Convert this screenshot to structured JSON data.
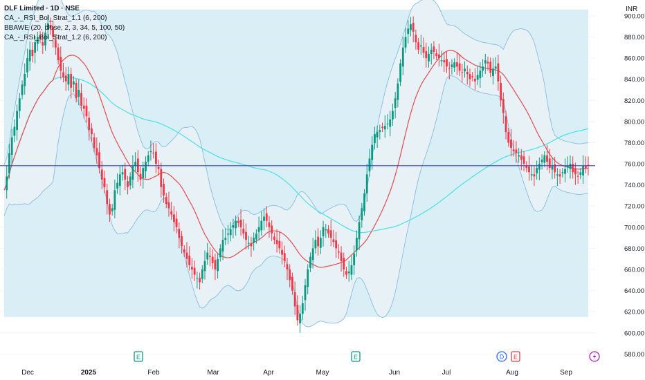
{
  "header": {
    "title": "DLF Limited · 1D · NSE",
    "indicators": [
      "CA_-_RSI_Bol_Strat_1.1 (6, 200)",
      "BBAWE (20, close, 2, 3, 34, 5, 100, 50)",
      "CA_-_RSI_Bol_Strat_1.2 (6, 200)"
    ],
    "currency": "INR"
  },
  "colors": {
    "up": "#089981",
    "down": "#f23645",
    "band_fill": "#d3ebf5",
    "band_line": "#8fc1e3",
    "ma_red": "#e0585b",
    "ma_cyan": "#4fe3e6",
    "hline": "#2f3fcf",
    "kc_blue": "#7fc3ee"
  },
  "chart_data": {
    "type": "candlestick",
    "x_labels": [
      "Dec",
      "2025",
      "Feb",
      "Mar",
      "Apr",
      "May",
      "Jun",
      "Jul",
      "Aug",
      "Sep"
    ],
    "y_ticks": [
      580,
      600,
      620,
      640,
      660,
      680,
      700,
      720,
      740,
      760,
      780,
      800,
      820,
      840,
      860,
      880,
      900
    ],
    "y_range": [
      575,
      915
    ],
    "horizontal_line": 758.2,
    "closes": [
      735,
      748,
      770,
      785,
      795,
      810,
      822,
      835,
      845,
      860,
      868,
      862,
      875,
      880,
      878,
      872,
      884,
      893,
      888,
      880,
      870,
      858,
      848,
      842,
      838,
      845,
      832,
      838,
      822,
      830,
      815,
      812,
      805,
      792,
      788,
      775,
      768,
      756,
      745,
      738,
      722,
      712,
      718,
      735,
      742,
      750,
      752,
      745,
      738,
      748,
      758,
      762,
      752,
      745,
      756,
      762,
      768,
      772,
      770,
      760,
      755,
      738,
      730,
      722,
      718,
      712,
      705,
      700,
      690,
      682,
      676,
      670,
      664,
      660,
      655,
      652,
      648,
      660,
      668,
      676,
      672,
      666,
      660,
      670,
      680,
      688,
      690,
      694,
      698,
      702,
      706,
      704,
      700,
      694,
      688,
      685,
      682,
      690,
      694,
      700,
      706,
      710,
      706,
      700,
      694,
      688,
      684,
      680,
      674,
      668,
      660,
      650,
      640,
      625,
      612,
      618,
      628,
      645,
      660,
      672,
      680,
      688,
      682,
      690,
      700,
      698,
      694,
      690,
      686,
      680,
      676,
      668,
      660,
      655,
      658,
      664,
      675,
      690,
      705,
      718,
      732,
      750,
      765,
      778,
      788,
      790,
      792,
      794,
      796,
      798,
      802,
      810,
      822,
      836,
      855,
      870,
      880,
      888,
      892,
      885,
      875,
      868,
      872,
      865,
      860,
      864,
      868,
      866,
      862,
      860,
      858,
      856,
      852,
      850,
      854,
      856,
      852,
      848,
      846,
      850,
      845,
      840,
      842,
      838,
      844,
      848,
      852,
      858,
      855,
      846,
      850,
      852,
      838,
      820,
      808,
      790,
      780,
      775,
      772,
      770,
      768,
      764,
      760,
      756,
      752,
      750,
      748,
      756,
      760,
      764,
      768,
      762,
      756,
      758,
      752,
      750,
      748,
      752,
      755,
      758,
      760,
      752,
      750,
      748,
      752,
      758,
      756,
      758
    ]
  }
}
